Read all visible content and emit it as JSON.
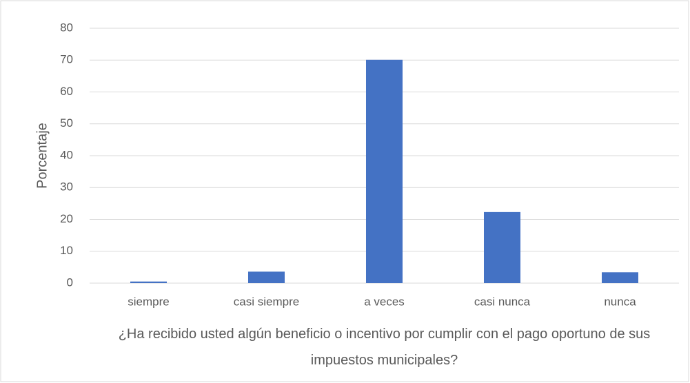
{
  "chart_data": {
    "type": "bar",
    "x_label": "¿Ha recibido usted algún beneficio o incentivo por cumplir con el pago oportuno de sus impuestos municipales?",
    "y_label": "Porcentaje",
    "categories": [
      "siempre",
      "casi siempre",
      "a veces",
      "casi nunca",
      "nunca"
    ],
    "values": [
      0.5,
      3.6,
      70.1,
      22.3,
      3.4
    ],
    "color": "#4472c4",
    "ylim": [
      0,
      80
    ],
    "yticks": [
      0,
      10,
      20,
      30,
      40,
      50,
      60,
      70,
      80
    ],
    "grid": true
  }
}
